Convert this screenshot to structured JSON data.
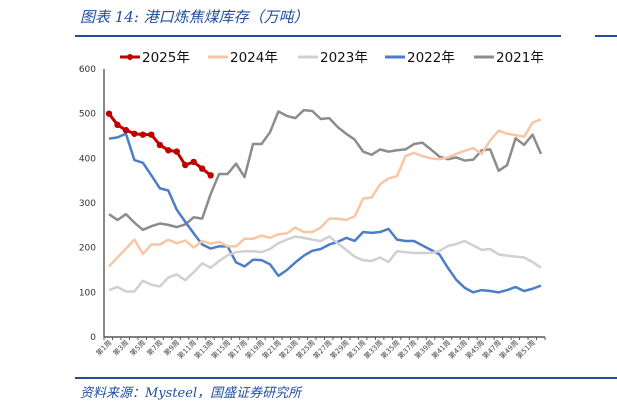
{
  "title": "图表 14:  港口炼焦煤库存（万吨）",
  "source": "资料来源：Mysteel，国盛证券研究所",
  "chart_data": {
    "type": "line",
    "title": "港口炼焦煤库存（万吨）",
    "ylim": [
      0,
      600
    ],
    "yticks": [
      0,
      100,
      200,
      300,
      400,
      500,
      600
    ],
    "xlabels": [
      "第1周",
      "第3周",
      "第5周",
      "第7周",
      "第9周",
      "第11周",
      "第13周",
      "第15周",
      "第17周",
      "第19周",
      "第21周",
      "第23周",
      "第25周",
      "第27周",
      "第29周",
      "第31周",
      "第33周",
      "第35周",
      "第37周",
      "第39周",
      "第41周",
      "第43周",
      "第45周",
      "第47周",
      "第49周",
      "第51周"
    ],
    "legend_position": "top",
    "series": [
      {
        "name": "2025年",
        "color": "#c00000",
        "markers": true,
        "values": [
          500,
          475,
          463,
          455,
          453,
          453,
          430,
          418,
          415,
          385,
          392,
          377,
          362
        ]
      },
      {
        "name": "2024年",
        "color": "#f8c6a4",
        "values": [
          158,
          178,
          198,
          218,
          186,
          207,
          207,
          218,
          210,
          216,
          200,
          215,
          209,
          213,
          203,
          203,
          220,
          220,
          227,
          222,
          230,
          232,
          245,
          235,
          235,
          245,
          265,
          265,
          262,
          270,
          310,
          312,
          342,
          355,
          360,
          405,
          412,
          405,
          400,
          398,
          402,
          410,
          417,
          423,
          410,
          440,
          462,
          455,
          452,
          448,
          480,
          487
        ]
      },
      {
        "name": "2023年",
        "color": "#d0d0d0",
        "values": [
          105,
          112,
          102,
          102,
          126,
          117,
          113,
          133,
          140,
          127,
          145,
          165,
          155,
          170,
          183,
          190,
          192,
          192,
          190,
          197,
          210,
          218,
          225,
          222,
          218,
          215,
          225,
          210,
          195,
          180,
          172,
          170,
          178,
          168,
          192,
          190,
          188,
          188,
          188,
          192,
          204,
          208,
          215,
          205,
          195,
          197,
          185,
          182,
          180,
          178,
          168,
          155
        ]
      },
      {
        "name": "2022年",
        "color": "#4a7ec6",
        "values": [
          444,
          447,
          455,
          396,
          390,
          362,
          333,
          328,
          285,
          258,
          232,
          207,
          198,
          203,
          203,
          167,
          158,
          173,
          172,
          163,
          137,
          150,
          167,
          182,
          193,
          197,
          207,
          213,
          222,
          215,
          235,
          233,
          235,
          242,
          218,
          215,
          215,
          205,
          195,
          185,
          155,
          128,
          110,
          100,
          105,
          103,
          100,
          105,
          112,
          103,
          108,
          115
        ]
      },
      {
        "name": "2021年",
        "color": "#8c8c8c",
        "values": [
          275,
          262,
          275,
          256,
          240,
          248,
          254,
          251,
          246,
          252,
          268,
          265,
          320,
          365,
          365,
          388,
          358,
          432,
          432,
          458,
          505,
          495,
          490,
          508,
          506,
          488,
          490,
          470,
          455,
          442,
          415,
          408,
          420,
          415,
          418,
          420,
          432,
          435,
          420,
          404,
          398,
          402,
          395,
          397,
          418,
          420,
          372,
          385,
          445,
          430,
          453,
          410
        ]
      }
    ]
  }
}
